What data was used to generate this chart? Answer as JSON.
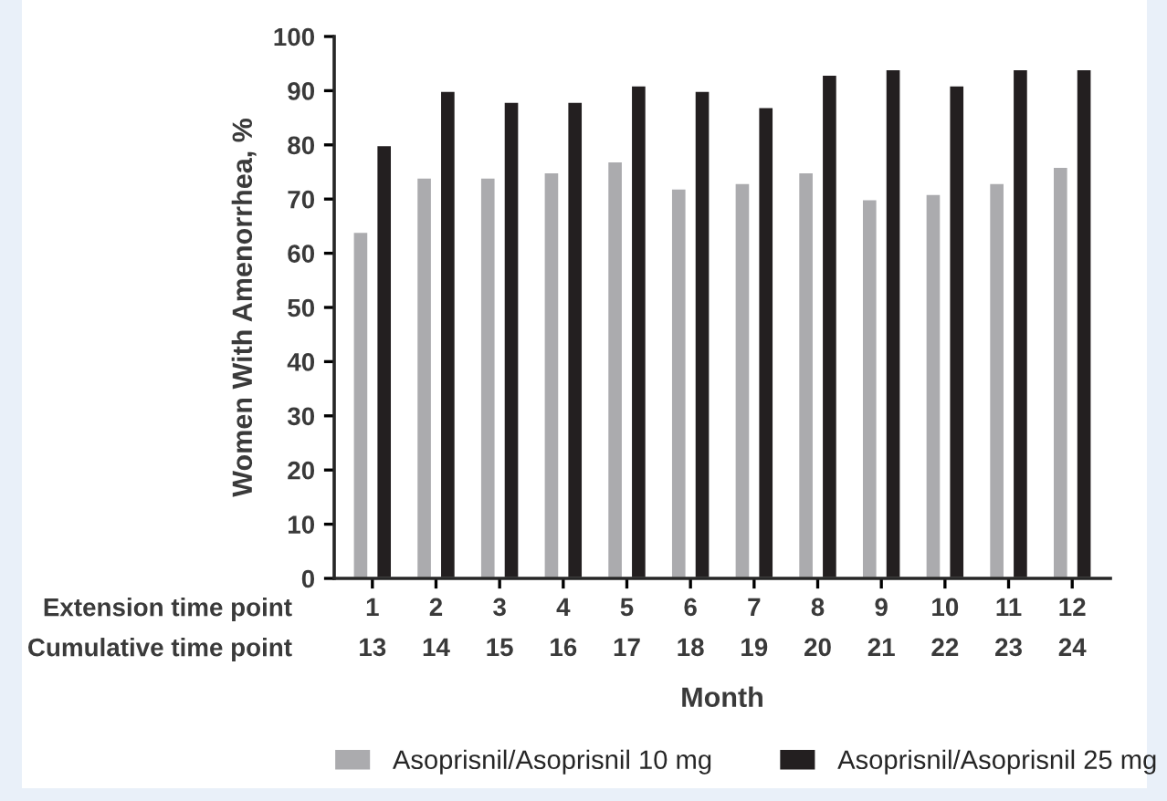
{
  "chart_data": {
    "type": "bar",
    "xlabel": "Month",
    "ylabel": "Women With Amenorrhea, %",
    "categories": [
      "1\n13",
      "2\n14",
      "3\n15",
      "4\n16",
      "5\n17",
      "6\n18",
      "7\n19",
      "8\n20",
      "9\n21",
      "10\n22",
      "11\n23",
      "12\n24"
    ],
    "series": [
      {
        "name": "Asoprisnil/Asoprisnil 10 mg",
        "color": "#ababae",
        "values": [
          64,
          74,
          74,
          75,
          77,
          72,
          73,
          75,
          70,
          71,
          73,
          76
        ]
      },
      {
        "name": "Asoprisnil/Asoprisnil 25 mg",
        "color": "#231f20",
        "values": [
          80,
          90,
          88,
          88,
          91,
          90,
          87,
          93,
          94,
          91,
          94,
          94
        ]
      }
    ],
    "annotations": [
      "Extension time point\nCumulative time point"
    ],
    "ylim": [
      0,
      100
    ],
    "yticks": [
      0,
      10,
      20,
      30,
      40,
      50,
      60,
      70,
      80,
      90,
      100
    ],
    "grid": false,
    "legend": "bottom"
  }
}
